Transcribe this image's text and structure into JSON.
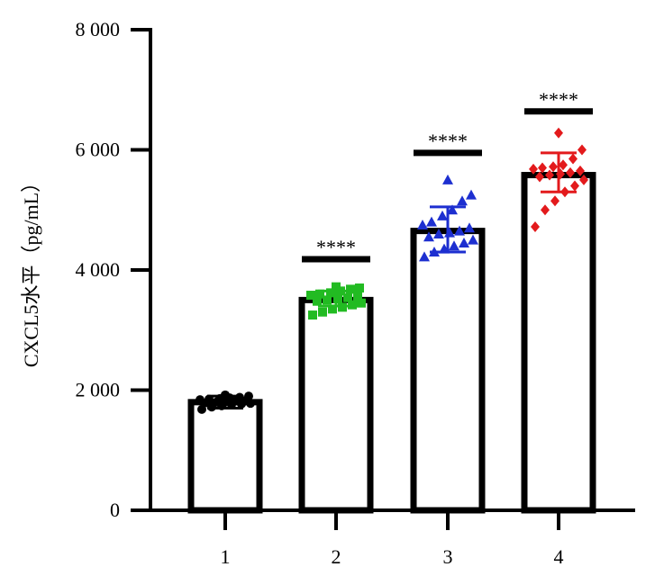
{
  "chart_data": {
    "type": "bar",
    "categories": [
      "1",
      "2",
      "3",
      "4"
    ],
    "values": [
      1800,
      3500,
      4650,
      5580
    ],
    "error": [
      [
        1700,
        1900
      ],
      [
        3400,
        3650
      ],
      [
        4300,
        5050
      ],
      [
        5300,
        5950
      ]
    ],
    "points": [
      [
        1680,
        1720,
        1740,
        1760,
        1770,
        1780,
        1790,
        1800,
        1810,
        1820,
        1830,
        1840,
        1850,
        1860,
        1870,
        1880,
        1900,
        1920
      ],
      [
        3250,
        3300,
        3350,
        3380,
        3420,
        3450,
        3480,
        3500,
        3520,
        3540,
        3560,
        3580,
        3600,
        3620,
        3650,
        3680,
        3700,
        3720
      ],
      [
        4220,
        4300,
        4350,
        4400,
        4450,
        4500,
        4550,
        4600,
        4620,
        4650,
        4700,
        4750,
        4800,
        4900,
        5000,
        5150,
        5250,
        5500
      ],
      [
        4720,
        5000,
        5150,
        5300,
        5400,
        5500,
        5550,
        5580,
        5600,
        5620,
        5650,
        5680,
        5700,
        5720,
        5750,
        5850,
        6000,
        6280
      ]
    ],
    "markers": [
      "circle",
      "square",
      "triangle",
      "diamond"
    ],
    "colors": [
      "#000000",
      "#22bb22",
      "#1d2fd0",
      "#e31a1c"
    ],
    "significance": [
      "",
      "****",
      "****",
      "****"
    ],
    "sig_levels": [
      null,
      4180,
      5950,
      6640
    ],
    "ylabel": "CXCL5水平（pg/mL）",
    "xlabel": "",
    "ylim": [
      0,
      8000
    ],
    "yticks": [
      0,
      2000,
      4000,
      6000,
      8000
    ],
    "ytick_labels": [
      "0",
      "2 000",
      "4 000",
      "6 000",
      "8 000"
    ],
    "grid": false
  }
}
